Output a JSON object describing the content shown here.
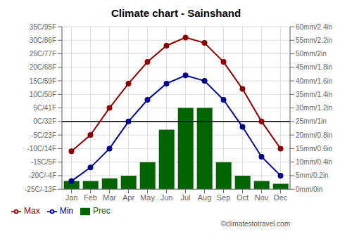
{
  "chart_data": {
    "type": "bar",
    "title": "Climate chart - Sainshand",
    "categories": [
      "Jan",
      "Feb",
      "Mar",
      "Apr",
      "May",
      "Jun",
      "Jul",
      "Aug",
      "Sep",
      "Oct",
      "Nov",
      "Dec"
    ],
    "series": [
      {
        "name": "Prec",
        "type": "bar",
        "axis": "y2",
        "color": "#006400",
        "values": [
          3,
          3,
          4,
          5,
          10,
          22,
          30,
          30,
          10,
          5,
          3,
          2
        ]
      },
      {
        "name": "Min",
        "type": "line",
        "color": "#00008B",
        "marker": "o",
        "values": [
          -22,
          -17,
          -10,
          0,
          8,
          14,
          17,
          15,
          8,
          -2,
          -13,
          -20
        ]
      },
      {
        "name": "Max",
        "type": "line",
        "color": "#8B0000",
        "marker": "o",
        "values": [
          -11,
          -5,
          5,
          14,
          22,
          28,
          31,
          29,
          22,
          12,
          0,
          -10
        ]
      }
    ],
    "ylim": [
      -25,
      35
    ],
    "yticks": [
      {
        "value": -25,
        "label": "-25C/-13F"
      },
      {
        "value": -20,
        "label": "-20C/-4F"
      },
      {
        "value": -15,
        "label": "-15C/5F"
      },
      {
        "value": -10,
        "label": "-10C/14F"
      },
      {
        "value": -5,
        "label": "-5C/23F"
      },
      {
        "value": 0,
        "label": "0C/32F"
      },
      {
        "value": 5,
        "label": "5C/41F"
      },
      {
        "value": 10,
        "label": "10C/50F"
      },
      {
        "value": 15,
        "label": "15C/59F"
      },
      {
        "value": 20,
        "label": "20C/68F"
      },
      {
        "value": 25,
        "label": "25C/77F"
      },
      {
        "value": 30,
        "label": "30C/86F"
      },
      {
        "value": 35,
        "label": "35C/95F"
      }
    ],
    "y2lim": [
      0,
      60
    ],
    "y2ticks": [
      {
        "value": 0,
        "label": "0mm/0in"
      },
      {
        "value": 5,
        "label": "5mm/0.2in"
      },
      {
        "value": 10,
        "label": "10mm/0.4in"
      },
      {
        "value": 15,
        "label": "15mm/0.6in"
      },
      {
        "value": 20,
        "label": "20mm/0.8in"
      },
      {
        "value": 25,
        "label": "25mm/1in"
      },
      {
        "value": 30,
        "label": "30mm/1.2in"
      },
      {
        "value": 35,
        "label": "35mm/1.4in"
      },
      {
        "value": 40,
        "label": "40mm/1.6in"
      },
      {
        "value": 45,
        "label": "45mm/1.8in"
      },
      {
        "value": 50,
        "label": "50mm/2in"
      },
      {
        "value": 55,
        "label": "55mm/2.2in"
      },
      {
        "value": 60,
        "label": "60mm/2.4in"
      }
    ],
    "reference_lines": [
      {
        "y": 0,
        "color": "#000000"
      }
    ],
    "grid": true,
    "legend": "lower left",
    "annotations": [
      {
        "text": "©climatestotravel.com"
      }
    ]
  }
}
